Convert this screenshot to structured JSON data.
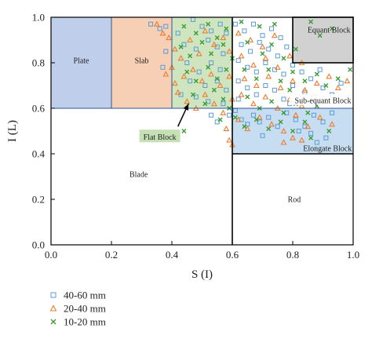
{
  "chart_data": {
    "type": "scatter",
    "xlabel": "S (I)",
    "ylabel": "I (L)",
    "xlim": [
      0.0,
      1.0
    ],
    "ylim": [
      0.0,
      1.0
    ],
    "x_ticks": [
      "0.0",
      "0.2",
      "0.4",
      "0.6",
      "0.8",
      "1.0"
    ],
    "y_ticks": [
      "0.0",
      "0.2",
      "0.4",
      "0.6",
      "0.8",
      "1.0"
    ],
    "grid": false,
    "legend_position": "bottom-left",
    "regions": [
      {
        "name": "Plate",
        "x": [
          0.0,
          0.2
        ],
        "y": [
          0.6,
          1.0
        ],
        "color": "#b4c7e7",
        "label_at": [
          0.1,
          0.81
        ]
      },
      {
        "name": "Slab",
        "x": [
          0.2,
          0.4
        ],
        "y": [
          0.6,
          1.0
        ],
        "color": "#f4c7a8",
        "label_at": [
          0.3,
          0.81
        ]
      },
      {
        "name": "Flat Block",
        "x": [
          0.4,
          0.6
        ],
        "y": [
          0.6,
          1.0
        ],
        "color": "#c5e0b4",
        "label_at": [
          0.36,
          0.475
        ]
      },
      {
        "name": "Equant Block",
        "x": [
          0.8,
          1.0
        ],
        "y": [
          0.8,
          1.0
        ],
        "color": "#c9c9c9",
        "label_at": [
          0.92,
          0.945
        ]
      },
      {
        "name": "Sub-equant Block",
        "x": [
          0.6,
          1.0
        ],
        "y": [
          0.6,
          1.0
        ],
        "color": "none",
        "label_at": [
          0.9,
          0.635
        ]
      },
      {
        "name": "Elongate Block",
        "x": [
          0.6,
          1.0
        ],
        "y": [
          0.4,
          0.6
        ],
        "color": "#bdd7ee",
        "label_at": [
          0.915,
          0.425
        ]
      },
      {
        "name": "Blade",
        "x": [
          0.0,
          0.6
        ],
        "y": [
          0.0,
          0.6
        ],
        "color": "none",
        "label_at": [
          0.29,
          0.31
        ]
      },
      {
        "name": "Rod",
        "x": [
          0.6,
          1.0
        ],
        "y": [
          0.0,
          0.4
        ],
        "color": "none",
        "label_at": [
          0.805,
          0.2
        ]
      }
    ],
    "annotation": {
      "text": "Flat Block",
      "arrow_from": [
        0.42,
        0.52
      ],
      "arrow_to": [
        0.455,
        0.62
      ]
    },
    "series": [
      {
        "name": "40-60 mm",
        "marker": "square",
        "color": "#5b9bd5",
        "points": [
          [
            0.33,
            0.97
          ],
          [
            0.36,
            0.95
          ],
          [
            0.38,
            0.96
          ],
          [
            0.42,
            0.93
          ],
          [
            0.47,
            0.99
          ],
          [
            0.5,
            0.96
          ],
          [
            0.53,
            0.94
          ],
          [
            0.56,
            0.97
          ],
          [
            0.58,
            0.93
          ],
          [
            0.44,
            0.88
          ],
          [
            0.48,
            0.86
          ],
          [
            0.52,
            0.9
          ],
          [
            0.55,
            0.87
          ],
          [
            0.57,
            0.84
          ],
          [
            0.45,
            0.8
          ],
          [
            0.49,
            0.76
          ],
          [
            0.53,
            0.8
          ],
          [
            0.56,
            0.77
          ],
          [
            0.46,
            0.72
          ],
          [
            0.51,
            0.7
          ],
          [
            0.55,
            0.72
          ],
          [
            0.58,
            0.68
          ],
          [
            0.48,
            0.65
          ],
          [
            0.52,
            0.63
          ],
          [
            0.57,
            0.62
          ],
          [
            0.38,
            0.85
          ],
          [
            0.37,
            0.78
          ],
          [
            0.43,
            0.66
          ],
          [
            0.59,
            0.57
          ],
          [
            0.55,
            0.54
          ],
          [
            0.53,
            0.57
          ],
          [
            0.61,
            0.97
          ],
          [
            0.64,
            0.94
          ],
          [
            0.67,
            0.97
          ],
          [
            0.7,
            0.92
          ],
          [
            0.73,
            0.95
          ],
          [
            0.76,
            0.91
          ],
          [
            0.63,
            0.88
          ],
          [
            0.66,
            0.85
          ],
          [
            0.69,
            0.89
          ],
          [
            0.72,
            0.86
          ],
          [
            0.75,
            0.83
          ],
          [
            0.78,
            0.87
          ],
          [
            0.62,
            0.81
          ],
          [
            0.65,
            0.78
          ],
          [
            0.68,
            0.76
          ],
          [
            0.71,
            0.8
          ],
          [
            0.74,
            0.77
          ],
          [
            0.77,
            0.75
          ],
          [
            0.8,
            0.79
          ],
          [
            0.83,
            0.76
          ],
          [
            0.86,
            0.73
          ],
          [
            0.89,
            0.77
          ],
          [
            0.62,
            0.72
          ],
          [
            0.65,
            0.69
          ],
          [
            0.68,
            0.66
          ],
          [
            0.71,
            0.7
          ],
          [
            0.74,
            0.68
          ],
          [
            0.77,
            0.64
          ],
          [
            0.8,
            0.7
          ],
          [
            0.84,
            0.67
          ],
          [
            0.87,
            0.65
          ],
          [
            0.9,
            0.69
          ],
          [
            0.93,
            0.66
          ],
          [
            0.96,
            0.71
          ],
          [
            0.61,
            0.59
          ],
          [
            0.63,
            0.55
          ],
          [
            0.65,
            0.53
          ],
          [
            0.67,
            0.57
          ],
          [
            0.69,
            0.54
          ],
          [
            0.72,
            0.56
          ],
          [
            0.75,
            0.52
          ],
          [
            0.78,
            0.58
          ],
          [
            0.81,
            0.55
          ],
          [
            0.84,
            0.52
          ],
          [
            0.87,
            0.57
          ],
          [
            0.9,
            0.54
          ],
          [
            0.93,
            0.58
          ],
          [
            0.91,
            0.47
          ],
          [
            0.88,
            0.45
          ],
          [
            0.86,
            0.49
          ],
          [
            0.7,
            0.48
          ],
          [
            0.82,
            0.5
          ],
          [
            0.62,
            0.64
          ],
          [
            0.79,
            0.62
          ]
        ]
      },
      {
        "name": "20-40 mm",
        "marker": "triangle",
        "color": "#ed7d31",
        "points": [
          [
            0.35,
            0.97
          ],
          [
            0.37,
            0.93
          ],
          [
            0.39,
            0.91
          ],
          [
            0.41,
            0.86
          ],
          [
            0.43,
            0.82
          ],
          [
            0.46,
            0.9
          ],
          [
            0.49,
            0.84
          ],
          [
            0.51,
            0.94
          ],
          [
            0.54,
            0.88
          ],
          [
            0.57,
            0.91
          ],
          [
            0.59,
            0.85
          ],
          [
            0.4,
            0.78
          ],
          [
            0.44,
            0.74
          ],
          [
            0.47,
            0.77
          ],
          [
            0.5,
            0.72
          ],
          [
            0.53,
            0.75
          ],
          [
            0.56,
            0.7
          ],
          [
            0.59,
            0.74
          ],
          [
            0.42,
            0.67
          ],
          [
            0.45,
            0.63
          ],
          [
            0.48,
            0.6
          ],
          [
            0.51,
            0.66
          ],
          [
            0.54,
            0.62
          ],
          [
            0.57,
            0.58
          ],
          [
            0.6,
            0.64
          ],
          [
            0.38,
            0.75
          ],
          [
            0.41,
            0.71
          ],
          [
            0.58,
            0.51
          ],
          [
            0.59,
            0.46
          ],
          [
            0.6,
            0.44
          ],
          [
            0.62,
            0.93
          ],
          [
            0.66,
            0.9
          ],
          [
            0.7,
            0.87
          ],
          [
            0.74,
            0.92
          ],
          [
            0.63,
            0.83
          ],
          [
            0.67,
            0.79
          ],
          [
            0.71,
            0.82
          ],
          [
            0.75,
            0.78
          ],
          [
            0.79,
            0.83
          ],
          [
            0.83,
            0.8
          ],
          [
            0.64,
            0.73
          ],
          [
            0.68,
            0.7
          ],
          [
            0.72,
            0.74
          ],
          [
            0.76,
            0.69
          ],
          [
            0.8,
            0.72
          ],
          [
            0.84,
            0.68
          ],
          [
            0.88,
            0.71
          ],
          [
            0.92,
            0.74
          ],
          [
            0.95,
            0.69
          ],
          [
            0.98,
            0.72
          ],
          [
            0.63,
            0.66
          ],
          [
            0.67,
            0.62
          ],
          [
            0.71,
            0.65
          ],
          [
            0.75,
            0.6
          ],
          [
            0.79,
            0.64
          ],
          [
            0.83,
            0.61
          ],
          [
            0.87,
            0.63
          ],
          [
            0.62,
            0.55
          ],
          [
            0.65,
            0.51
          ],
          [
            0.69,
            0.56
          ],
          [
            0.73,
            0.53
          ],
          [
            0.77,
            0.5
          ],
          [
            0.81,
            0.57
          ],
          [
            0.85,
            0.52
          ],
          [
            0.89,
            0.56
          ],
          [
            0.93,
            0.53
          ],
          [
            0.83,
            0.46
          ],
          [
            0.8,
            0.47
          ],
          [
            0.77,
            0.45
          ]
        ]
      },
      {
        "name": "10-20 mm",
        "marker": "x",
        "color": "#3a9b35",
        "points": [
          [
            0.44,
            0.96
          ],
          [
            0.48,
            0.93
          ],
          [
            0.52,
            0.97
          ],
          [
            0.55,
            0.91
          ],
          [
            0.58,
            0.95
          ],
          [
            0.43,
            0.87
          ],
          [
            0.46,
            0.83
          ],
          [
            0.5,
            0.89
          ],
          [
            0.53,
            0.84
          ],
          [
            0.57,
            0.88
          ],
          [
            0.6,
            0.82
          ],
          [
            0.45,
            0.76
          ],
          [
            0.48,
            0.72
          ],
          [
            0.52,
            0.78
          ],
          [
            0.55,
            0.73
          ],
          [
            0.58,
            0.77
          ],
          [
            0.47,
            0.66
          ],
          [
            0.51,
            0.62
          ],
          [
            0.54,
            0.68
          ],
          [
            0.57,
            0.64
          ],
          [
            0.59,
            0.6
          ],
          [
            0.44,
            0.5
          ],
          [
            0.56,
            0.55
          ],
          [
            0.63,
            0.98
          ],
          [
            0.69,
            0.96
          ],
          [
            0.74,
            0.97
          ],
          [
            0.65,
            0.89
          ],
          [
            0.7,
            0.84
          ],
          [
            0.73,
            0.88
          ],
          [
            0.77,
            0.82
          ],
          [
            0.81,
            0.86
          ],
          [
            0.86,
            0.98
          ],
          [
            0.89,
            0.92
          ],
          [
            0.93,
            0.95
          ],
          [
            0.64,
            0.77
          ],
          [
            0.68,
            0.73
          ],
          [
            0.72,
            0.77
          ],
          [
            0.76,
            0.72
          ],
          [
            0.8,
            0.76
          ],
          [
            0.84,
            0.72
          ],
          [
            0.88,
            0.75
          ],
          [
            0.91,
            0.7
          ],
          [
            0.95,
            0.73
          ],
          [
            0.65,
            0.65
          ],
          [
            0.69,
            0.6
          ],
          [
            0.73,
            0.63
          ],
          [
            0.77,
            0.58
          ],
          [
            0.81,
            0.62
          ],
          [
            0.85,
            0.58
          ],
          [
            0.88,
            0.61
          ],
          [
            0.61,
            0.56
          ],
          [
            0.64,
            0.52
          ],
          [
            0.68,
            0.55
          ],
          [
            0.72,
            0.51
          ],
          [
            0.76,
            0.54
          ],
          [
            0.8,
            0.5
          ],
          [
            0.84,
            0.54
          ],
          [
            0.86,
            0.47
          ],
          [
            0.92,
            0.5
          ],
          [
            0.79,
            0.68
          ],
          [
            0.99,
            0.77
          ]
        ]
      }
    ]
  }
}
